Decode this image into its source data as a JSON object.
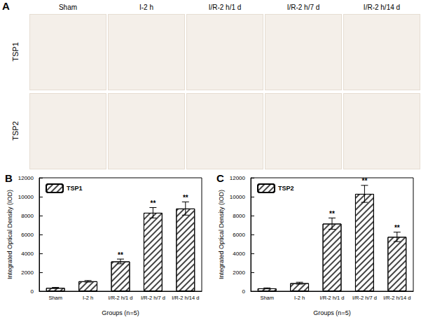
{
  "panel_a": {
    "label": "A",
    "columns": [
      "Sham",
      "I-2 h",
      "I/R-2 h/1 d",
      "I/R-2 h/7 d",
      "I/R-2 h/14 d"
    ],
    "rows": [
      "TSP1",
      "TSP2"
    ]
  },
  "chart_data": [
    {
      "type": "bar",
      "title": "B",
      "categories": [
        "Sham",
        "I-2 h",
        "I/R-2 h/1 d",
        "I/R-2 h/7 d",
        "I/R-2 h/14 d"
      ],
      "series": [
        {
          "name": "TSP1",
          "color": "#ffffff",
          "values": [
            350,
            1050,
            3150,
            8300,
            8750
          ],
          "errors": [
            50,
            80,
            250,
            550,
            700
          ],
          "annotations": [
            null,
            null,
            "**",
            "**",
            "**"
          ]
        }
      ],
      "xlabel": "Groups (n=5)",
      "ylabel": "Integrated Optical Density (IOD)",
      "ylim": [
        0,
        12000
      ],
      "yticks": [
        0,
        2000,
        4000,
        6000,
        8000,
        10000,
        12000
      ],
      "legend": "upper left"
    },
    {
      "type": "bar",
      "title": "C",
      "categories": [
        "Sham",
        "I-2 h",
        "I/R-2 h/1 d",
        "I/R-2 h/7 d",
        "I/R-2 h/14 d"
      ],
      "series": [
        {
          "name": "TSP2",
          "color": "#ffffff",
          "values": [
            300,
            850,
            7150,
            10300,
            5750
          ],
          "errors": [
            50,
            100,
            600,
            900,
            500
          ],
          "annotations": [
            null,
            null,
            "**",
            "**",
            "**"
          ]
        }
      ],
      "xlabel": "Groups (n=5)",
      "ylabel": "Integrated Optical Density (IOD)",
      "ylim": [
        0,
        12000
      ],
      "yticks": [
        0,
        2000,
        4000,
        6000,
        8000,
        10000,
        12000
      ],
      "legend": "upper left"
    }
  ]
}
